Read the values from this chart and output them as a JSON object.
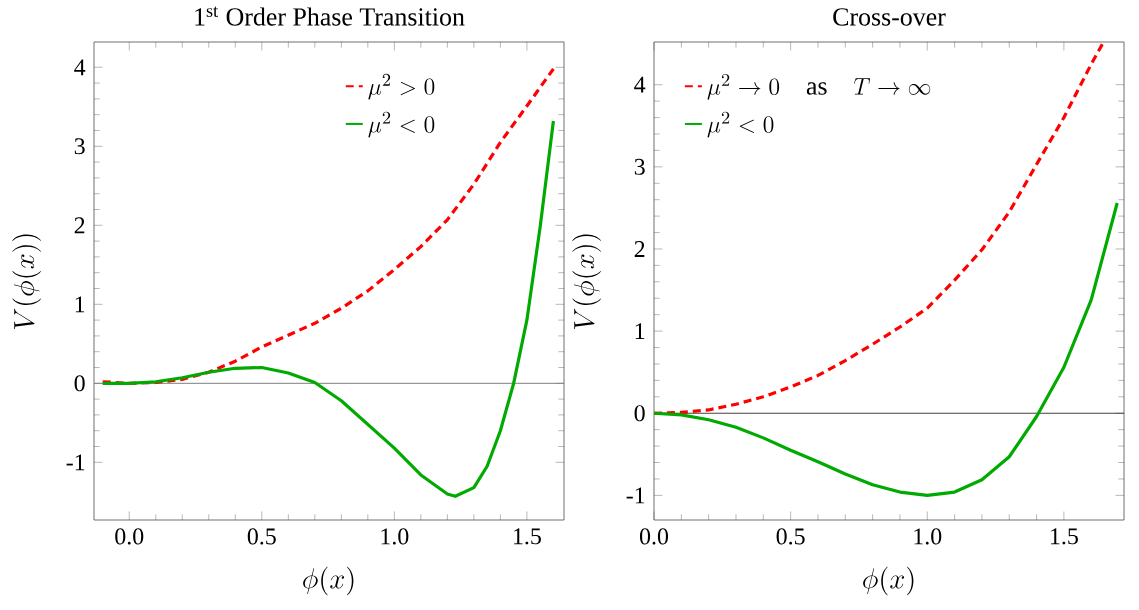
{
  "chart_data": [
    {
      "type": "line",
      "title": "1$^{st}$ Order Phase Transition",
      "xlabel": "\\phi(x)",
      "ylabel": "V(\\phi(x))",
      "xlim": [
        -0.133,
        1.64
      ],
      "ylim": [
        -1.73,
        4.32
      ],
      "xticks": [
        {
          "value": 0,
          "label": "0.0"
        },
        {
          "value": 0.5,
          "label": "0.5"
        },
        {
          "value": 1,
          "label": "1.0"
        },
        {
          "value": 1.5,
          "label": "1.5"
        }
      ],
      "yticks": [
        -1,
        0,
        1,
        2,
        3,
        4
      ],
      "legend": "top right",
      "grid": false,
      "marker": "none",
      "ref_lines": [
        {
          "axis": "y",
          "value": 0,
          "color": "#808080"
        }
      ],
      "series": [
        {
          "name": "\\mu^2 > 0",
          "color": "#ff0000",
          "line_style": "dashed",
          "x": [
            -0.1,
            0,
            0.1,
            0.2,
            0.3,
            0.4,
            0.5,
            0.6,
            0.7,
            0.8,
            0.9,
            1.0,
            1.1,
            1.2,
            1.3,
            1.4,
            1.5,
            1.6
          ],
          "values": [
            0.02,
            0,
            0.01,
            0.05,
            0.14,
            0.28,
            0.46,
            0.61,
            0.76,
            0.95,
            1.17,
            1.44,
            1.73,
            2.07,
            2.52,
            3.05,
            3.51,
            3.98
          ]
        },
        {
          "name": "\\mu^2 < 0",
          "color": "#00aa00",
          "line_style": "solid",
          "x": [
            -0.1,
            0,
            0.1,
            0.2,
            0.3,
            0.4,
            0.5,
            0.6,
            0.7,
            0.8,
            0.9,
            1.0,
            1.1,
            1.2,
            1.23,
            1.3,
            1.35,
            1.4,
            1.45,
            1.5,
            1.55,
            1.6
          ],
          "values": [
            0,
            0,
            0.02,
            0.07,
            0.14,
            0.19,
            0.2,
            0.13,
            0.01,
            -0.22,
            -0.52,
            -0.82,
            -1.16,
            -1.4,
            -1.43,
            -1.32,
            -1.05,
            -0.6,
            0,
            0.8,
            1.98,
            3.32
          ]
        }
      ]
    },
    {
      "type": "line",
      "title": "Cross-over",
      "xlabel": "\\phi(x)",
      "ylabel": "V(\\phi(x))",
      "xlim": [
        0,
        1.72
      ],
      "ylim": [
        -1.3,
        4.52
      ],
      "xticks": [
        {
          "value": 0,
          "label": "0.0"
        },
        {
          "value": 0.5,
          "label": "0.5"
        },
        {
          "value": 1,
          "label": "1.0"
        },
        {
          "value": 1.5,
          "label": "1.5"
        }
      ],
      "yticks": [
        -1,
        0,
        1,
        2,
        3,
        4
      ],
      "legend": "top left",
      "grid": false,
      "marker": "none",
      "ref_lines": [
        {
          "axis": "y",
          "value": 0,
          "color": "#404040"
        }
      ],
      "series": [
        {
          "name": "\\mu^2 \\to 0 \\quad \\mathrm{as} \\quad T \\to \\infty",
          "color": "#ff0000",
          "line_style": "dashed",
          "x": [
            0,
            0.1,
            0.2,
            0.3,
            0.4,
            0.5,
            0.6,
            0.7,
            0.8,
            0.9,
            1.0,
            1.1,
            1.2,
            1.3,
            1.4,
            1.5,
            1.6,
            1.645
          ],
          "values": [
            0,
            0.01,
            0.04,
            0.11,
            0.2,
            0.32,
            0.46,
            0.64,
            0.84,
            1.05,
            1.28,
            1.62,
            1.99,
            2.45,
            3.03,
            3.6,
            4.25,
            4.52
          ]
        },
        {
          "name": "\\mu^2 < 0",
          "color": "#00aa00",
          "line_style": "solid",
          "x": [
            0,
            0.1,
            0.2,
            0.3,
            0.4,
            0.5,
            0.6,
            0.7,
            0.8,
            0.9,
            1.0,
            1.1,
            1.2,
            1.3,
            1.4,
            1.5,
            1.6,
            1.695
          ],
          "values": [
            0,
            -0.02,
            -0.08,
            -0.17,
            -0.3,
            -0.45,
            -0.59,
            -0.74,
            -0.87,
            -0.96,
            -1.0,
            -0.96,
            -0.81,
            -0.53,
            -0.04,
            0.56,
            1.38,
            2.56
          ]
        }
      ]
    }
  ]
}
